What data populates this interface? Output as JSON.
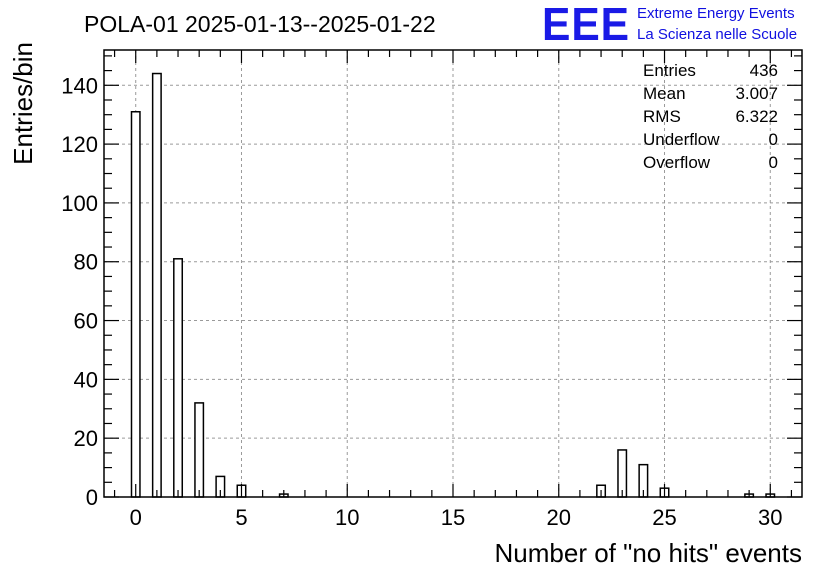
{
  "chart_data": {
    "type": "bar",
    "title": "POLA-01 2025-01-13--2025-01-22",
    "xlabel": "Number of \"no hits\" events",
    "ylabel": "Entries/bin",
    "xlim": [
      -1.5,
      31.5
    ],
    "ylim": [
      0,
      152
    ],
    "grid": true,
    "bin_width": 0.4,
    "x_ticks": [
      0,
      5,
      10,
      15,
      20,
      25,
      30
    ],
    "y_ticks": [
      0,
      20,
      40,
      60,
      80,
      100,
      120,
      140
    ],
    "x": [
      0,
      1,
      2,
      3,
      4,
      5,
      7,
      22,
      23,
      24,
      25,
      29,
      30
    ],
    "values": [
      131,
      144,
      81,
      32,
      7,
      4,
      1,
      4,
      16,
      11,
      3,
      1,
      1
    ],
    "stats": {
      "labels": [
        "Entries",
        "Mean",
        "RMS",
        "Underflow",
        "Overflow"
      ],
      "values": [
        "436",
        "3.007",
        "6.322",
        "0",
        "0"
      ],
      "placement": "top-right"
    }
  },
  "logo": {
    "mark": "EEE",
    "line1": "Extreme Energy Events",
    "line2": "La Scienza nelle Scuole",
    "color": "#1a1ae6"
  },
  "colors": {
    "bar_fill": "#ffffff",
    "bar_stroke": "#000000",
    "grid": "#9a9a9a",
    "axis": "#000000"
  }
}
